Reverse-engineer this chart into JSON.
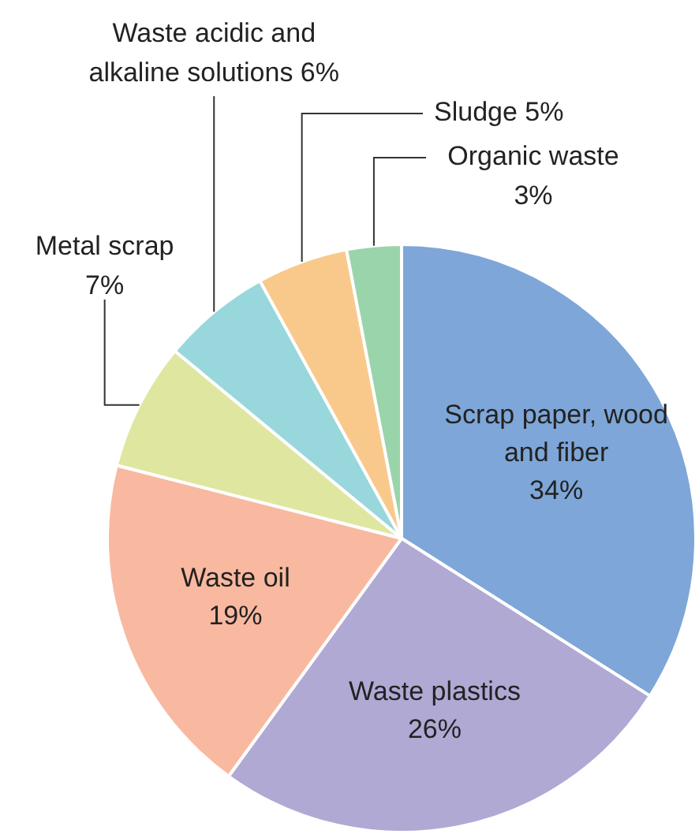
{
  "chart_data": {
    "type": "pie",
    "categories": [
      "Scrap paper, wood and fiber",
      "Waste plastics",
      "Waste oil",
      "Metal scrap",
      "Waste acidic and alkaline solutions",
      "Sludge",
      "Organic waste"
    ],
    "values": [
      34,
      26,
      19,
      7,
      6,
      5,
      3
    ],
    "value_labels": [
      "34%",
      "26%",
      "19%",
      "7%",
      "6%",
      "5%",
      "3%"
    ],
    "colors": [
      "#7ea6d8",
      "#b0a9d4",
      "#f8b9a0",
      "#dfe6a0",
      "#98d7dc",
      "#f9c98c",
      "#9ad4ab"
    ],
    "legend": false
  }
}
